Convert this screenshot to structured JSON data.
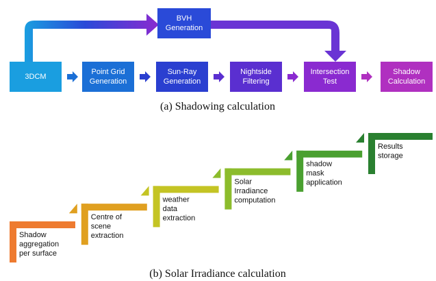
{
  "figure_a": {
    "top_node": {
      "lines": [
        "BVH",
        "Generation"
      ]
    },
    "nodes": [
      {
        "lines": [
          "3DCM"
        ]
      },
      {
        "lines": [
          "Point Grid",
          "Generation"
        ]
      },
      {
        "lines": [
          "Sun-Ray",
          "Generation"
        ]
      },
      {
        "lines": [
          "Nightside",
          "Filtering"
        ]
      },
      {
        "lines": [
          "Intersection",
          "Test"
        ]
      },
      {
        "lines": [
          "Shadow",
          "Calculation"
        ]
      }
    ],
    "caption": "(a) Shadowing calculation"
  },
  "figure_b": {
    "steps": [
      {
        "lines": [
          "Shadow",
          "aggregation",
          "per surface"
        ]
      },
      {
        "lines": [
          "Centre of",
          "scene",
          "extraction"
        ]
      },
      {
        "lines": [
          "weather",
          "data",
          "extraction"
        ]
      },
      {
        "lines": [
          "Solar",
          "Irradiance",
          "computation"
        ]
      },
      {
        "lines": [
          "shadow",
          "mask",
          "application"
        ]
      },
      {
        "lines": [
          "Results",
          "storage"
        ]
      }
    ],
    "caption": "(b) Solar Irradiance calculation"
  }
}
